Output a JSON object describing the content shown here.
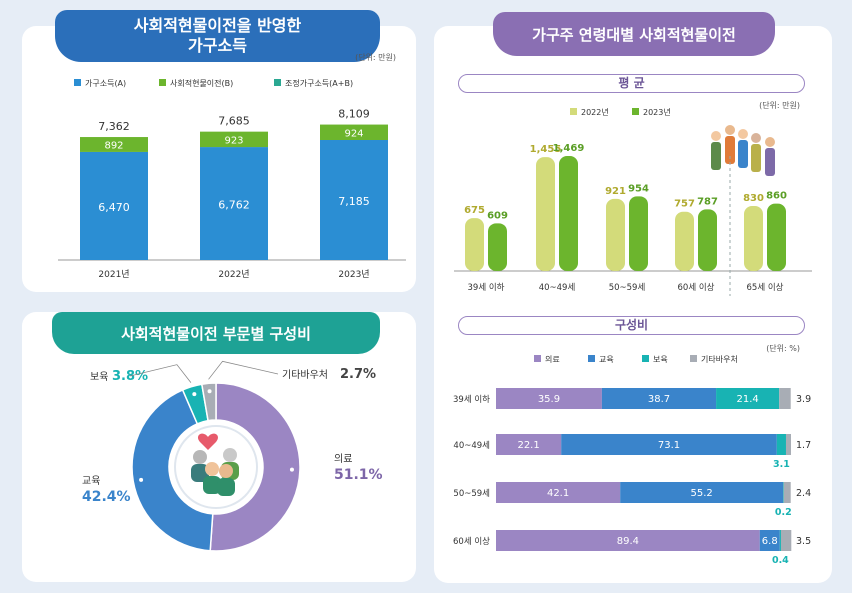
{
  "panel1": {
    "title_line1": "사회적현물이전을 반영한",
    "title_line2": "가구소득",
    "unit": "(단위: 만원)",
    "legend": [
      {
        "label": "가구소득(A)",
        "color": "#2b8ed3"
      },
      {
        "label": "사회적현물이전(B)",
        "color": "#6cb52d"
      },
      {
        "label": "조정가구소득(A+B)",
        "color": "#2aa892"
      }
    ]
  },
  "panel2": {
    "title": "가구주 연령대별 사회적현물이전",
    "avg_label": "평 균",
    "comp_label": "구성비",
    "avg_unit": "(단위: 만원)",
    "comp_unit": "(단위: %)",
    "avg_legend": [
      {
        "label": "2022년",
        "color": "#d3db7a"
      },
      {
        "label": "2023년",
        "color": "#6cb52d"
      }
    ],
    "comp_legend": [
      {
        "label": "의료",
        "color": "#9b86c3"
      },
      {
        "label": "교육",
        "color": "#3a84cb"
      },
      {
        "label": "보육",
        "color": "#18b3b3"
      },
      {
        "label": "기타바우처",
        "color": "#a8adb5"
      }
    ]
  },
  "panel3": {
    "title": "사회적현물이전 부문별 구성비"
  },
  "chart_data": [
    {
      "type": "bar",
      "stacked": true,
      "title": "사회적현물이전을 반영한 가구소득",
      "unit": "(단위: 만원)",
      "categories": [
        "2021년",
        "2022년",
        "2023년"
      ],
      "series": [
        {
          "name": "가구소득(A)",
          "values": [
            6470,
            6762,
            7185
          ],
          "labels": [
            "6,470",
            "6,762",
            "7,185"
          ],
          "color": "#2b8ed3"
        },
        {
          "name": "사회적현물이전(B)",
          "values": [
            892,
            923,
            924
          ],
          "labels": [
            "892",
            "923",
            "924"
          ],
          "color": "#6cb52d"
        }
      ],
      "totals": {
        "name": "조정가구소득(A+B)",
        "values": [
          7362,
          7685,
          8109
        ],
        "labels": [
          "7,362",
          "7,685",
          "8,109"
        ]
      }
    },
    {
      "type": "bar",
      "title": "평 균",
      "unit": "(단위: 만원)",
      "categories": [
        "39세 이하",
        "40~49세",
        "50~59세",
        "60세 이상",
        "65세 이상"
      ],
      "series": [
        {
          "name": "2022년",
          "values": [
            675,
            1455,
            921,
            757,
            830
          ],
          "labels": [
            "675",
            "1,455",
            "921",
            "757",
            "830"
          ],
          "color": "#d3db7a"
        },
        {
          "name": "2023년",
          "values": [
            609,
            1469,
            954,
            787,
            860
          ],
          "labels": [
            "609",
            "1,469",
            "954",
            "787",
            "860"
          ],
          "color": "#6cb52d"
        }
      ]
    },
    {
      "type": "bar",
      "orientation": "horizontal",
      "stacked": true,
      "title": "구성비",
      "unit": "(단위: %)",
      "categories": [
        "39세 이하",
        "40~49세",
        "50~59세",
        "60세 이상"
      ],
      "series": [
        {
          "name": "의료",
          "values": [
            35.9,
            22.1,
            42.1,
            89.4
          ],
          "labels": [
            "35.9",
            "22.1",
            "42.1",
            "89.4"
          ],
          "color": "#9b86c3"
        },
        {
          "name": "교육",
          "values": [
            38.7,
            73.1,
            55.2,
            6.8
          ],
          "labels": [
            "38.7",
            "73.1",
            "55.2",
            "6.8"
          ],
          "color": "#3a84cb"
        },
        {
          "name": "보육",
          "values": [
            21.4,
            3.1,
            0.2,
            0.4
          ],
          "labels": [
            "21.4",
            "3.1",
            "0.2",
            "0.4"
          ],
          "color": "#18b3b3"
        },
        {
          "name": "기타바우처",
          "values": [
            3.9,
            1.7,
            2.4,
            3.5
          ],
          "labels": [
            "3.9",
            "1.7",
            "2.4",
            "3.5"
          ],
          "color": "#a8adb5"
        }
      ]
    },
    {
      "type": "pie",
      "donut": true,
      "title": "사회적현물이전 부문별 구성비",
      "slices": [
        {
          "name": "의료",
          "value": 51.1,
          "label": "51.1%",
          "color": "#9b86c3"
        },
        {
          "name": "교육",
          "value": 42.4,
          "label": "42.4%",
          "color": "#3a84cb"
        },
        {
          "name": "보육",
          "value": 3.8,
          "label": "3.8%",
          "color": "#18b3b3"
        },
        {
          "name": "기타바우처",
          "value": 2.7,
          "label": "2.7%",
          "color": "#a8adb5"
        }
      ]
    }
  ]
}
